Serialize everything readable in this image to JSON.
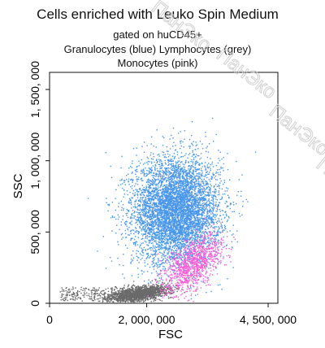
{
  "header": {
    "title": "Cells enriched with Leuko Spin Medium",
    "subtitle_lines": [
      "gated on huCD45+",
      "Granulocytes (blue) Lymphocytes (grey)",
      "Monocytes (pink)"
    ]
  },
  "watermark": {
    "text": "ПанЭко",
    "color": "#c8c8c8"
  },
  "chart_data": {
    "type": "scatter",
    "title": "Cells enriched with Leuko Spin Medium",
    "xlabel": "FSC",
    "ylabel": "SSC",
    "xlim": [
      0,
      4700000
    ],
    "ylim": [
      0,
      1620000
    ],
    "x_ticks": [
      {
        "value": 0,
        "label": "0"
      },
      {
        "value": 2000000,
        "label": "2, 000, 000"
      },
      {
        "value": 4500000,
        "label": "4, 500, 000"
      }
    ],
    "y_ticks": [
      {
        "value": 0,
        "label": "0"
      },
      {
        "value": 500000,
        "label": "500, 000"
      },
      {
        "value": 1000000,
        "label": "1, 000, 000"
      },
      {
        "value": 1500000,
        "label": "1, 500, 000"
      }
    ],
    "grid": false,
    "legend": "none",
    "series": [
      {
        "name": "Granulocytes (blue)",
        "color": "#4a97ea",
        "cx": 2600000,
        "cy": 650000,
        "sx": 450000,
        "sy": 190000,
        "count": 6000
      },
      {
        "name": "Lymphocytes (grey)",
        "color": "#6a6a6a",
        "cx": 1850000,
        "cy": 70000,
        "sx": 300000,
        "sy": 25000,
        "count": 1900
      },
      {
        "name": "Monocytes (pink)",
        "color": "#ff5cd6",
        "cx": 2950000,
        "cy": 280000,
        "sx": 300000,
        "sy": 85000,
        "count": 1000
      }
    ]
  }
}
